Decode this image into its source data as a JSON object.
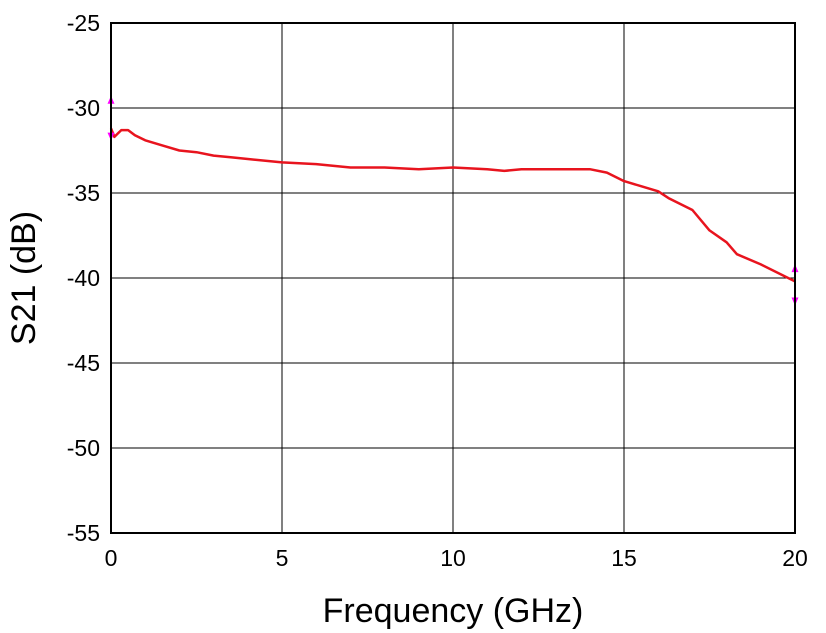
{
  "chart_data": {
    "type": "line",
    "title": "",
    "xlabel": "Frequency (GHz)",
    "ylabel": "S21 (dB)",
    "xlim": [
      0,
      20
    ],
    "ylim": [
      -55,
      -25
    ],
    "xticks": [
      "0",
      "5",
      "10",
      "15",
      "20"
    ],
    "yticks": [
      "-25",
      "-30",
      "-35",
      "-40",
      "-45",
      "-50",
      "-55"
    ],
    "grid": true,
    "legend": "none",
    "series": [
      {
        "color": "#e8141e",
        "x": [
          0,
          0.1,
          0.2,
          0.3,
          0.5,
          0.7,
          1.0,
          1.5,
          2.0,
          2.5,
          3.0,
          3.5,
          4.0,
          5.0,
          6.0,
          7.0,
          8.0,
          9.0,
          10.0,
          11.0,
          11.5,
          12.0,
          13.0,
          14.0,
          14.5,
          15.0,
          15.5,
          16.0,
          16.3,
          17.0,
          17.5,
          18.0,
          18.3,
          19.0,
          20.0
        ],
        "values": [
          -31.2,
          -31.7,
          -31.5,
          -31.3,
          -31.3,
          -31.6,
          -31.9,
          -32.2,
          -32.5,
          -32.6,
          -32.8,
          -32.9,
          -33.0,
          -33.2,
          -33.3,
          -33.5,
          -33.5,
          -33.6,
          -33.5,
          -33.6,
          -33.7,
          -33.6,
          -33.6,
          -33.6,
          -33.8,
          -34.3,
          -34.6,
          -34.9,
          -35.3,
          -36.0,
          -37.2,
          -37.9,
          -38.6,
          -39.2,
          -40.2
        ]
      }
    ],
    "error_markers": [
      {
        "x": 0,
        "upper": -29.4,
        "lower": -31.8,
        "color": "#ff00ff"
      },
      {
        "x": 20,
        "upper": -39.3,
        "lower": -41.5,
        "color": "#ff00ff"
      }
    ]
  }
}
